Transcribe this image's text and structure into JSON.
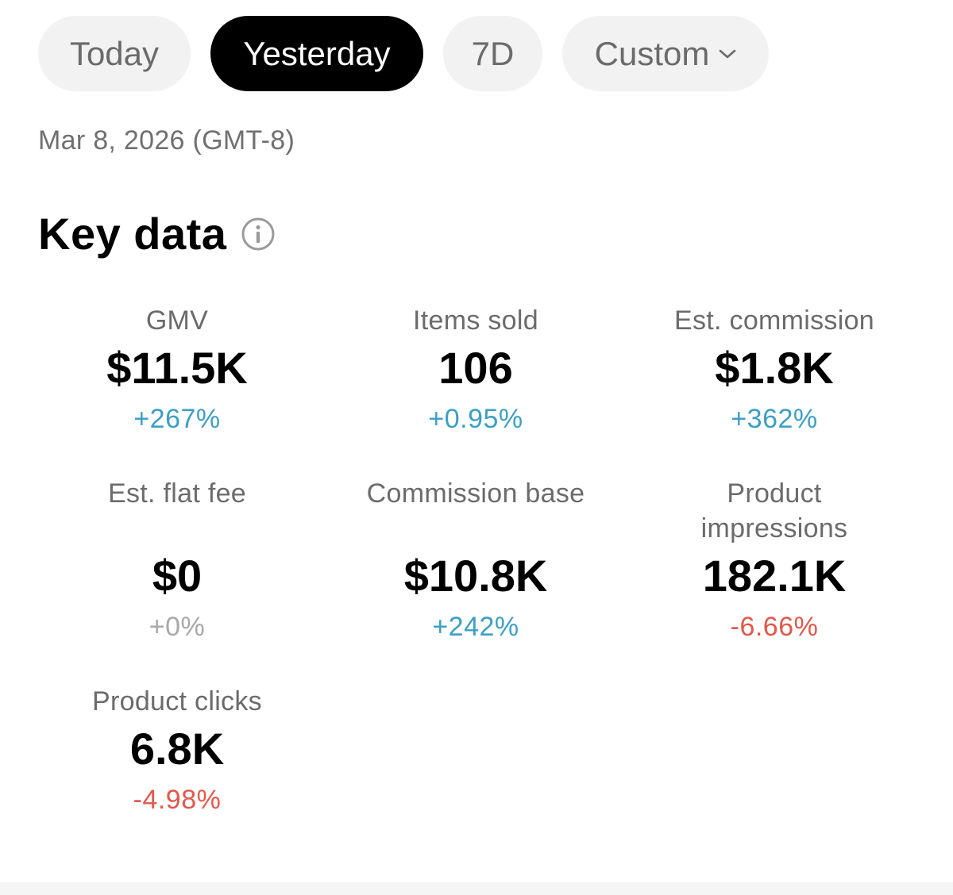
{
  "tabs": [
    {
      "label": "Today",
      "active": false
    },
    {
      "label": "Yesterday",
      "active": true
    },
    {
      "label": "7D",
      "active": false
    },
    {
      "label": "Custom",
      "active": false
    }
  ],
  "date_line": "Mar 8, 2026 (GMT-8)",
  "section": {
    "title": "Key data"
  },
  "metrics": [
    {
      "label": "GMV",
      "value": "$11.5K",
      "change": "+267%",
      "trend": "up"
    },
    {
      "label": "Items sold",
      "value": "106",
      "change": "+0.95%",
      "trend": "up"
    },
    {
      "label": "Est. commission",
      "value": "$1.8K",
      "change": "+362%",
      "trend": "up"
    },
    {
      "label": "Est. flat fee",
      "value": "$0",
      "change": "+0%",
      "trend": "flat"
    },
    {
      "label": "Commission base",
      "value": "$10.8K",
      "change": "+242%",
      "trend": "up"
    },
    {
      "label": "Product impressions",
      "value": "182.1K",
      "change": "-6.66%",
      "trend": "down"
    },
    {
      "label": "Product clicks",
      "value": "6.8K",
      "change": "-4.98%",
      "trend": "down"
    }
  ],
  "colors": {
    "active_tab_bg": "#000000",
    "inactive_tab_bg": "#f2f2f2",
    "positive": "#3d9fc4",
    "negative": "#e2584b",
    "neutral": "#a8a8a8"
  },
  "icons": {
    "custom_tab": "chevron-down-icon",
    "section_info": "info-icon"
  }
}
